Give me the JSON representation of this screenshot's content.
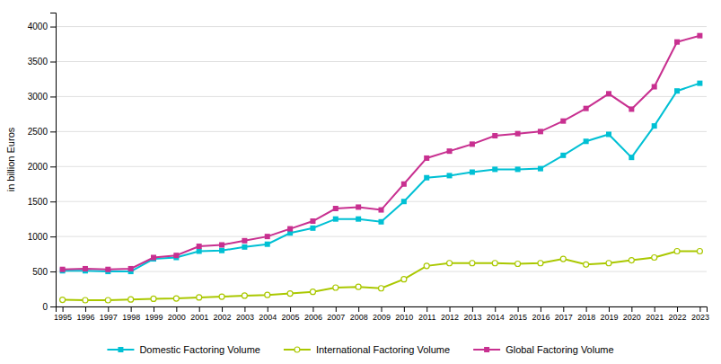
{
  "chart_data": {
    "type": "line",
    "y_label": "in billion Euros",
    "x": [
      1995,
      1996,
      1997,
      1998,
      1999,
      2000,
      2001,
      2002,
      2003,
      2004,
      2005,
      2006,
      2007,
      2008,
      2009,
      2010,
      2011,
      2012,
      2013,
      2014,
      2015,
      2016,
      2017,
      2018,
      2019,
      2020,
      2021,
      2022,
      2023
    ],
    "series": [
      {
        "name": "Domestic Factoring Volume",
        "color": "#00c0d4",
        "marker": "square",
        "line_style": "solid",
        "values": [
          510,
          510,
          500,
          500,
          680,
          700,
          790,
          800,
          850,
          890,
          1050,
          1120,
          1250,
          1250,
          1210,
          1500,
          1840,
          1870,
          1920,
          1960,
          1960,
          1970,
          2160,
          2360,
          2460,
          2130,
          2580,
          3080,
          3190
        ]
      },
      {
        "name": "International Factoring Volume",
        "color": "#aac800",
        "marker": "circle",
        "line_style": "solid",
        "values": [
          95,
          90,
          90,
          100,
          110,
          115,
          130,
          140,
          155,
          165,
          185,
          210,
          270,
          280,
          260,
          390,
          580,
          620,
          620,
          620,
          610,
          620,
          680,
          600,
          620,
          660,
          700,
          790,
          790
        ]
      },
      {
        "name": "Global Factoring Volume",
        "color": "#c83090",
        "marker": "square",
        "line_style": "solid",
        "values": [
          530,
          540,
          530,
          540,
          700,
          730,
          860,
          880,
          940,
          1000,
          1110,
          1220,
          1400,
          1420,
          1380,
          1750,
          2120,
          2220,
          2320,
          2440,
          2470,
          2500,
          2650,
          2830,
          3040,
          2820,
          3140,
          3780,
          3870
        ]
      }
    ],
    "xlim": [
      1994.7,
      2023.3
    ],
    "xticks": [
      1995,
      1996,
      1997,
      1998,
      1999,
      2000,
      2001,
      2002,
      2003,
      2004,
      2005,
      2006,
      2007,
      2008,
      2009,
      2010,
      2011,
      2012,
      2013,
      2014,
      2015,
      2016,
      2017,
      2018,
      2019,
      2020,
      2021,
      2022,
      2023
    ],
    "ylim": [
      0,
      4200
    ],
    "yticks": [
      0,
      500,
      1000,
      1500,
      2000,
      2500,
      3000,
      3500,
      4000
    ],
    "grid": true,
    "legend": "bottom"
  }
}
